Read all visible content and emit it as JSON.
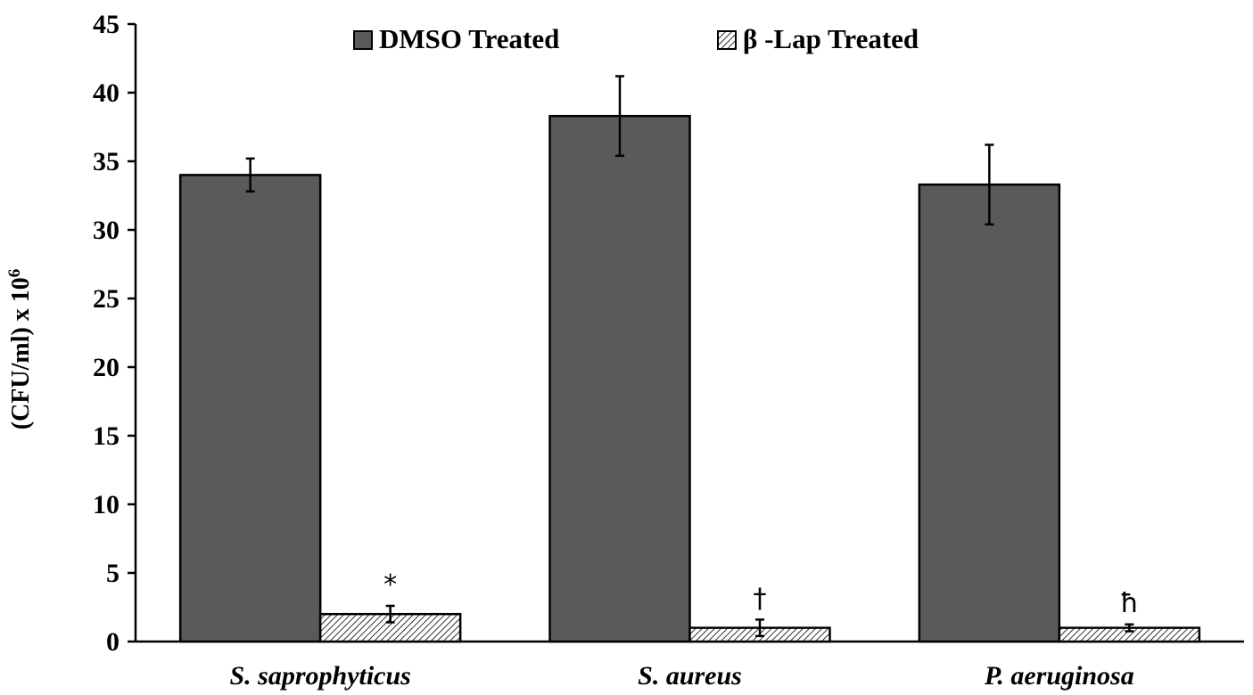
{
  "chart_data": {
    "type": "bar",
    "title": "",
    "xlabel": "",
    "ylabel": "(CFU/ml) x 10",
    "ylabel_superscript": "6",
    "ylim": [
      0,
      45
    ],
    "yticks": [
      0,
      5,
      10,
      15,
      20,
      25,
      30,
      35,
      40,
      45
    ],
    "grid": false,
    "legend_position": "top",
    "categories": [
      "S. saprophyticus",
      "S. aureus",
      "P. aeruginosa"
    ],
    "series": [
      {
        "name": "DMSO Treated",
        "fill": "solid",
        "color": "#5a5a5a",
        "values": [
          34.0,
          38.3,
          33.3
        ],
        "errors": [
          1.2,
          2.9,
          2.9
        ]
      },
      {
        "name": "β -Lap Treated",
        "fill": "hatched",
        "color": "#ffffff",
        "values": [
          2.0,
          1.0,
          1.0
        ],
        "errors": [
          0.6,
          0.6,
          0.25
        ]
      }
    ],
    "annotations": [
      "*",
      "†",
      "ħ"
    ]
  }
}
